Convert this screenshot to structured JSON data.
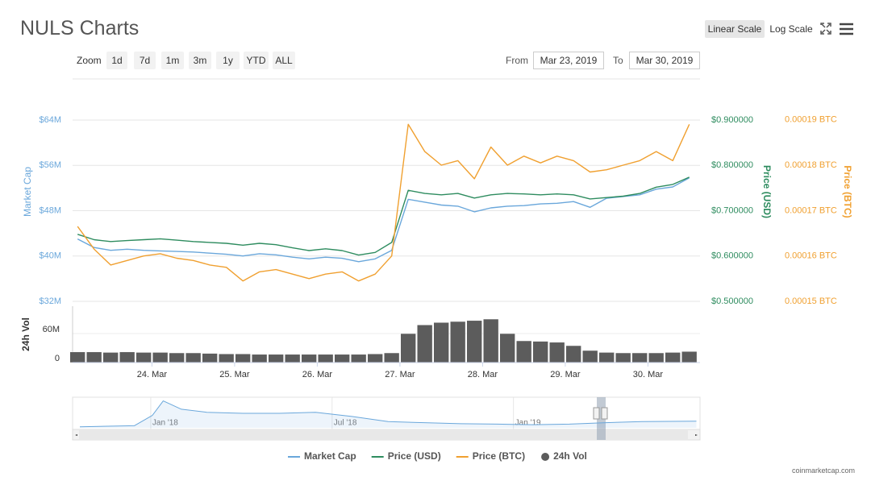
{
  "header": {
    "title": "NULS Charts",
    "scale_buttons": [
      "Linear Scale",
      "Log Scale"
    ],
    "zoom_label": "Zoom",
    "zoom_buttons": [
      "1d",
      "7d",
      "1m",
      "3m",
      "1y",
      "YTD",
      "ALL"
    ],
    "from_label": "From",
    "from_date": "Mar 23, 2019",
    "to_label": "To",
    "to_date": "Mar 30, 2019"
  },
  "chart_data": [
    {
      "type": "line",
      "ylabel": "Market Cap",
      "y2label": "Price (USD)",
      "y3label": "Price (BTC)",
      "x": [
        23.1,
        23.3,
        23.5,
        23.7,
        23.9,
        24.1,
        24.3,
        24.5,
        24.7,
        24.9,
        25.1,
        25.3,
        25.5,
        25.7,
        25.9,
        26.1,
        26.3,
        26.5,
        26.7,
        26.9,
        27.1,
        27.3,
        27.5,
        27.7,
        27.9,
        28.1,
        28.3,
        28.5,
        28.7,
        28.9,
        29.1,
        29.3,
        29.5,
        29.7,
        29.9,
        30.1,
        30.3,
        30.5
      ],
      "xlim": [
        23.04,
        30.63
      ],
      "ylim": [
        32000000,
        71250000
      ],
      "yticks": [
        {
          "value": 32000000,
          "label": "$32M"
        },
        {
          "value": 40000000,
          "label": "$40M"
        },
        {
          "value": 48000000,
          "label": "$48M"
        },
        {
          "value": 56000000,
          "label": "$56M"
        },
        {
          "value": 64000000,
          "label": "$64M"
        }
      ],
      "y2lim": [
        0.5,
        0.9907
      ],
      "y2ticks": [
        {
          "value": 0.5,
          "label": "$0.500000"
        },
        {
          "value": 0.6,
          "label": "$0.600000"
        },
        {
          "value": 0.7,
          "label": "$0.700000"
        },
        {
          "value": 0.8,
          "label": "$0.800000"
        },
        {
          "value": 0.9,
          "label": "$0.900000"
        }
      ],
      "y3lim": [
        0.00015,
        0.000199
      ],
      "y3ticks": [
        {
          "value": 0.00015,
          "label": "0.00015 BTC"
        },
        {
          "value": 0.00016,
          "label": "0.00016 BTC"
        },
        {
          "value": 0.00017,
          "label": "0.00017 BTC"
        },
        {
          "value": 0.00018,
          "label": "0.00018 BTC"
        },
        {
          "value": 0.00019,
          "label": "0.00019 BTC"
        }
      ],
      "grid": true,
      "series": [
        {
          "name": "Market Cap",
          "color": "#6aa7db",
          "axis": "y",
          "values": [
            43000000,
            41500000,
            41000000,
            41200000,
            41000000,
            40900000,
            40800000,
            40700000,
            40500000,
            40300000,
            40000000,
            40400000,
            40200000,
            39800000,
            39500000,
            39800000,
            39600000,
            39000000,
            39500000,
            41000000,
            50000000,
            49500000,
            49000000,
            48800000,
            47800000,
            48500000,
            48800000,
            48900000,
            49200000,
            49300000,
            49600000,
            48600000,
            50200000,
            50500000,
            50800000,
            51800000,
            52200000,
            53800000
          ]
        },
        {
          "name": "Price (USD)",
          "color": "#2e8c5f",
          "axis": "y2",
          "values": [
            0.648,
            0.636,
            0.632,
            0.634,
            0.636,
            0.638,
            0.635,
            0.632,
            0.63,
            0.628,
            0.624,
            0.628,
            0.625,
            0.618,
            0.612,
            0.616,
            0.612,
            0.602,
            0.608,
            0.63,
            0.745,
            0.738,
            0.735,
            0.738,
            0.728,
            0.735,
            0.738,
            0.737,
            0.735,
            0.737,
            0.735,
            0.726,
            0.729,
            0.732,
            0.738,
            0.752,
            0.758,
            0.774
          ]
        },
        {
          "name": "Price (BTC)",
          "color": "#f0a030",
          "axis": "y3",
          "values": [
            0.0001665,
            0.0001615,
            0.000158,
            0.000159,
            0.00016,
            0.0001605,
            0.0001595,
            0.000159,
            0.000158,
            0.0001575,
            0.0001545,
            0.0001565,
            0.000157,
            0.000156,
            0.000155,
            0.000156,
            0.0001565,
            0.0001545,
            0.000156,
            0.00016,
            0.000189,
            0.000183,
            0.00018,
            0.000181,
            0.000177,
            0.000184,
            0.00018,
            0.000182,
            0.0001805,
            0.000182,
            0.000181,
            0.0001785,
            0.000179,
            0.00018,
            0.000181,
            0.000183,
            0.000181,
            0.000189
          ]
        }
      ]
    },
    {
      "type": "bar",
      "ylabel": "24h Vol",
      "x": [
        23.1,
        23.3,
        23.5,
        23.7,
        23.9,
        24.1,
        24.3,
        24.5,
        24.7,
        24.9,
        25.1,
        25.3,
        25.5,
        25.7,
        25.9,
        26.1,
        26.3,
        26.5,
        26.7,
        26.9,
        27.1,
        27.3,
        27.5,
        27.7,
        27.9,
        28.1,
        28.3,
        28.5,
        28.7,
        28.9,
        29.1,
        29.3,
        29.5,
        29.7,
        29.9,
        30.1,
        30.3,
        30.5
      ],
      "xlim": [
        23.04,
        30.63
      ],
      "xticks": [
        {
          "value": 24,
          "label": "24. Mar"
        },
        {
          "value": 25,
          "label": "25. Mar"
        },
        {
          "value": 26,
          "label": "26. Mar"
        },
        {
          "value": 27,
          "label": "27. Mar"
        },
        {
          "value": 28,
          "label": "28. Mar"
        },
        {
          "value": 29,
          "label": "29. Mar"
        },
        {
          "value": 30,
          "label": "30. Mar"
        }
      ],
      "ylim": [
        0,
        116700000
      ],
      "yticks": [
        0,
        {
          "value": 60000000,
          "label": "60M"
        }
      ],
      "series": [
        {
          "name": "24h Vol",
          "color": "#5c5c5c",
          "values": [
            22000000,
            22000000,
            21000000,
            22000000,
            21000000,
            21000000,
            20000000,
            20000000,
            19000000,
            18000000,
            18000000,
            17000000,
            17000000,
            17000000,
            17000000,
            17000000,
            17000000,
            17000000,
            18000000,
            20000000,
            60000000,
            78000000,
            83000000,
            85000000,
            87000000,
            90000000,
            60000000,
            45000000,
            44000000,
            42000000,
            35000000,
            25000000,
            21000000,
            20000000,
            20000000,
            20000000,
            21000000,
            23000000
          ]
        }
      ]
    },
    {
      "type": "area",
      "x": [
        2017.8,
        2017.95,
        2018.0,
        2018.03,
        2018.08,
        2018.15,
        2018.25,
        2018.35,
        2018.45,
        2018.55,
        2018.65,
        2018.75,
        2018.85,
        2018.95,
        2019.05,
        2019.15,
        2019.25,
        2019.35,
        2019.5
      ],
      "values": [
        5000000,
        10000000,
        60000000,
        130000000,
        90000000,
        75000000,
        70000000,
        70000000,
        75000000,
        55000000,
        30000000,
        25000000,
        20000000,
        18000000,
        15000000,
        18000000,
        25000000,
        30000000,
        32000000
      ],
      "color": "#6aa7db",
      "xlim": [
        2017.78,
        2019.51
      ],
      "ylim": [
        0,
        140000000
      ],
      "xticks": [
        {
          "value": 2018.0,
          "label": "Jan '18"
        },
        {
          "value": 2018.5,
          "label": "Jul '18"
        },
        {
          "value": 2019.0,
          "label": "Jan '19"
        }
      ]
    }
  ],
  "credit": "coinmarketcap.com"
}
